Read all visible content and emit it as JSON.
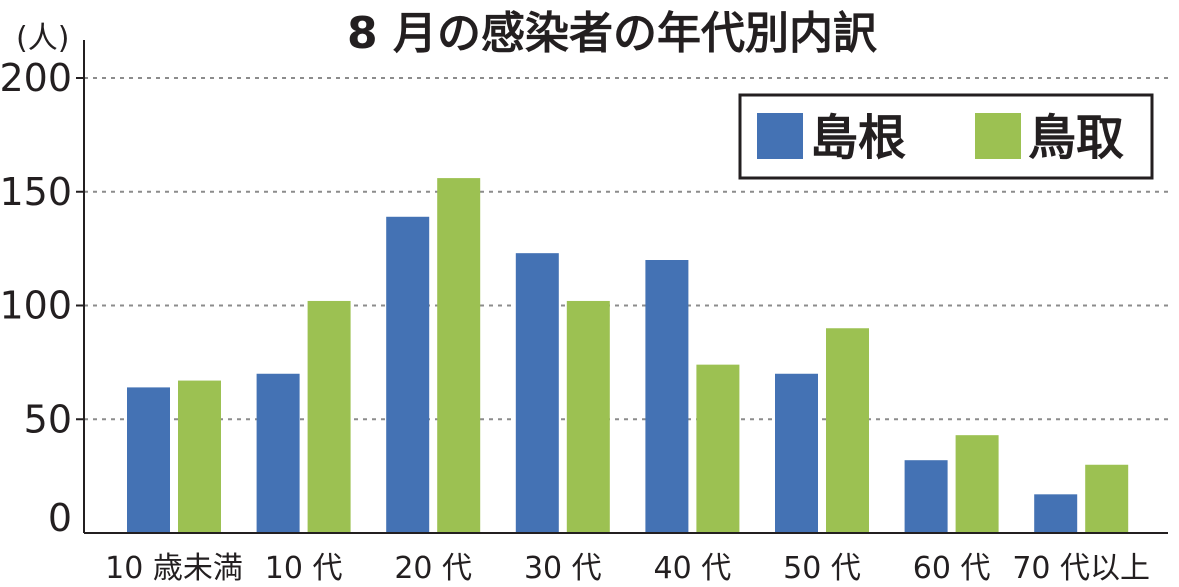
{
  "chart_data": {
    "type": "bar",
    "title": "8 月の感染者の年代別内訳",
    "unit_label": "(人)",
    "categories": [
      "10 歳未満",
      "10 代",
      "20 代",
      "30 代",
      "40 代",
      "50 代",
      "60 代",
      "70 代以上"
    ],
    "series": [
      {
        "name": "島根",
        "color": "#4472b4",
        "values": [
          64,
          70,
          139,
          123,
          120,
          70,
          32,
          17
        ]
      },
      {
        "name": "鳥取",
        "color": "#9cc152",
        "values": [
          67,
          102,
          156,
          102,
          74,
          90,
          43,
          30
        ]
      }
    ],
    "yticks": [
      "0",
      "50",
      "100",
      "150",
      "200"
    ],
    "ylim": [
      0,
      200
    ],
    "grid": true,
    "legend_position": "top-right"
  }
}
